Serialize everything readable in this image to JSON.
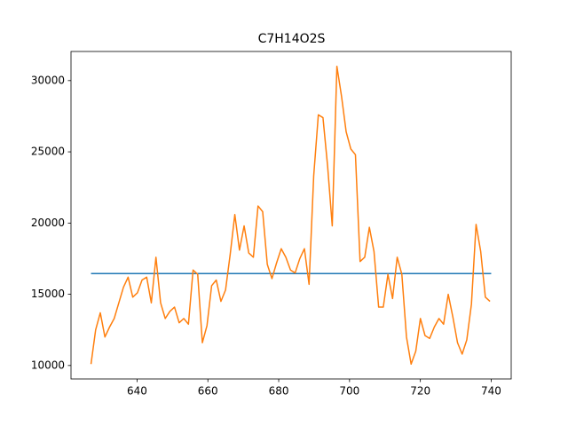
{
  "chart_data": {
    "type": "line",
    "title": "C7H14O2S",
    "xlim": [
      621.35,
      745.65
    ],
    "ylim": [
      9055,
      32045
    ],
    "xticks": [
      640,
      660,
      680,
      700,
      720,
      740
    ],
    "yticks": [
      10000,
      15000,
      20000,
      25000,
      30000
    ],
    "series": [
      {
        "color": "#1f77b4",
        "x": [
          627,
          740
        ],
        "values": [
          16450,
          16450
        ]
      },
      {
        "color": "#ff7f0e",
        "x": [
          627,
          628.31,
          629.62,
          630.93,
          632.24,
          633.55,
          634.86,
          636.17,
          637.48,
          638.79,
          640.1,
          641.41,
          642.72,
          644.03,
          645.34,
          646.65,
          647.96,
          649.27,
          650.58,
          651.89,
          653.2,
          654.51,
          655.82,
          657.13,
          658.44,
          659.75,
          661.06,
          662.37,
          663.68,
          664.99,
          666.3,
          667.61,
          668.92,
          670.23,
          671.54,
          672.85,
          674.16,
          675.47,
          676.78,
          678.09,
          679.4,
          680.71,
          682.02,
          683.33,
          684.64,
          685.95,
          687.26,
          688.57,
          689.88,
          691.19,
          692.5,
          693.81,
          695.12,
          696.43,
          697.74,
          699.05,
          700.36,
          701.67,
          702.98,
          704.29,
          705.6,
          706.91,
          708.22,
          709.53,
          710.84,
          712.15,
          713.46,
          714.77,
          716.08,
          717.39,
          718.7,
          720.01,
          721.32,
          722.63,
          723.94,
          725.25,
          726.56,
          727.87,
          729.18,
          730.49,
          731.8,
          733.11,
          734.42,
          735.73,
          737.04,
          738.35,
          739.66
        ],
        "values": [
          10100,
          12500,
          13700,
          12000,
          12700,
          13300,
          14400,
          15500,
          16200,
          14800,
          15100,
          16000,
          16200,
          14400,
          17600,
          14400,
          13300,
          13800,
          14100,
          13000,
          13300,
          12900,
          16700,
          16400,
          11600,
          12800,
          15600,
          16000,
          14500,
          15300,
          17800,
          20600,
          18100,
          19800,
          17900,
          17600,
          21200,
          20800,
          17100,
          16100,
          17200,
          18200,
          17600,
          16700,
          16500,
          17500,
          18200,
          15700,
          23300,
          27600,
          27400,
          24000,
          19800,
          31000,
          28900,
          26400,
          25200,
          24800,
          17300,
          17600,
          19700,
          18000,
          14100,
          14100,
          16400,
          14700,
          17600,
          16400,
          12000,
          10100,
          11000,
          13300,
          12100,
          11900,
          12700,
          13300,
          12900,
          15000,
          13400,
          11600,
          10800,
          11800,
          14300,
          19900,
          18000,
          14800,
          14500
        ]
      }
    ]
  }
}
